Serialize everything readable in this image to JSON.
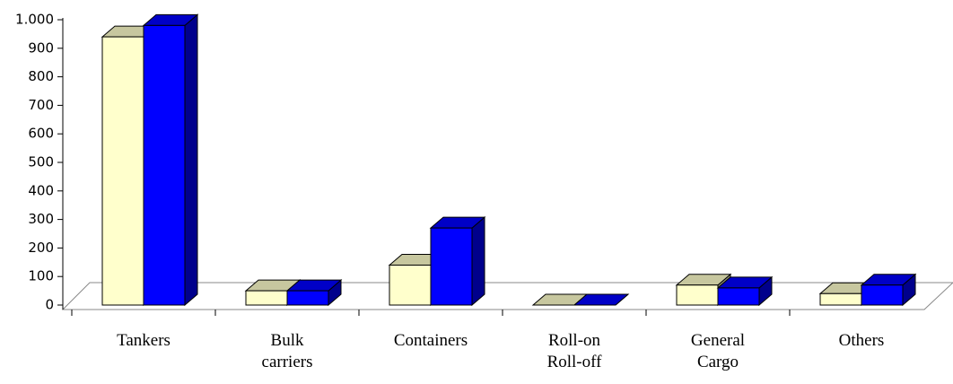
{
  "chart_data": {
    "type": "bar3d",
    "categories": [
      "Tankers",
      "Bulk\ncarriers",
      "Containers",
      "Roll-on\nRoll-off",
      "General\nCargo",
      "Others"
    ],
    "series": [
      {
        "color": "#ffffcc",
        "values": [
          940,
          50,
          140,
          0,
          70,
          40
        ]
      },
      {
        "color": "#0000ff",
        "values": [
          980,
          50,
          270,
          0,
          60,
          70
        ]
      }
    ],
    "ylim": [
      0,
      1000
    ],
    "yticks": [
      0,
      100,
      200,
      300,
      400,
      500,
      600,
      700,
      800,
      900,
      {
        "value": 1000,
        "label": "1.000"
      }
    ],
    "grid": false
  }
}
